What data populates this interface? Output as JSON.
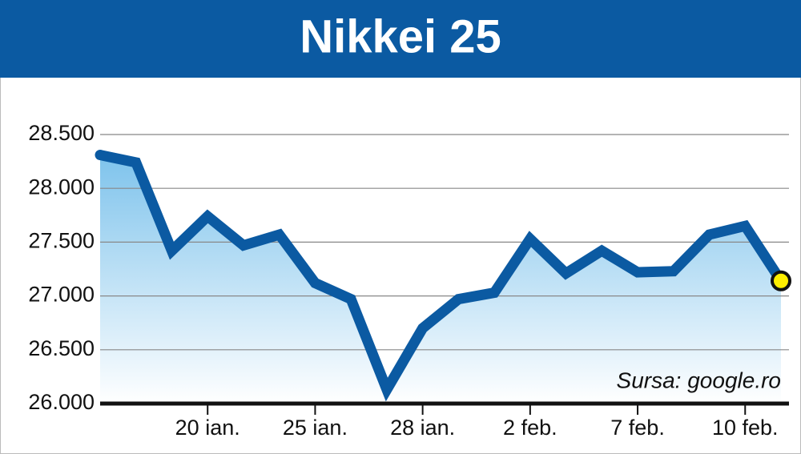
{
  "chart_data": {
    "type": "line",
    "title": "Nikkei 25",
    "categories": [
      null,
      null,
      null,
      "20 ian.",
      null,
      null,
      "25 ian.",
      null,
      null,
      "28 ian.",
      null,
      null,
      "2 feb.",
      null,
      null,
      "7 feb.",
      null,
      null,
      "10 feb.",
      null
    ],
    "series": [
      {
        "name": "Nikkei 25",
        "color": "#0b5aa2",
        "values": [
          28310,
          28240,
          27420,
          27740,
          27470,
          27570,
          27120,
          26970,
          26130,
          26700,
          26970,
          27030,
          27530,
          27210,
          27420,
          27220,
          27230,
          27570,
          27650,
          27140
        ]
      }
    ],
    "ylim": [
      26000,
      28500
    ],
    "yticks": [
      {
        "value": 26000,
        "label": "26.000"
      },
      {
        "value": 26500,
        "label": "26.500"
      },
      {
        "value": 27000,
        "label": "27.000"
      },
      {
        "value": 27500,
        "label": "27.500"
      },
      {
        "value": 28000,
        "label": "28.000"
      },
      {
        "value": 28500,
        "label": "28.500"
      }
    ],
    "grid": true,
    "annotation": "Sursa: google.ro"
  }
}
